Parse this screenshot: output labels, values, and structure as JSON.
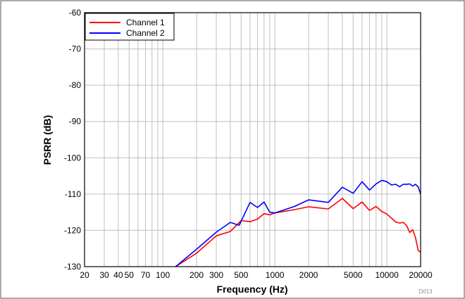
{
  "chart_data": {
    "type": "line",
    "xlabel": "Frequency (Hz)",
    "ylabel": "PSRR (dB)",
    "x_scale": "log",
    "xlim": [
      20,
      20000
    ],
    "ylim": [
      -130,
      -60
    ],
    "grid": true,
    "legend_position": "top-left",
    "x_ticks": [
      20,
      30,
      40,
      50,
      70,
      100,
      200,
      300,
      500,
      1000,
      2000,
      5000,
      10000,
      20000
    ],
    "x_tick_labels": [
      "20",
      "30",
      "40",
      "50",
      "70",
      "100",
      "200",
      "300",
      "500",
      "1000",
      "2000",
      "5000",
      "10000",
      "20000"
    ],
    "y_ticks": [
      -60,
      -70,
      -80,
      -90,
      -100,
      -110,
      -120,
      -130
    ],
    "y_tick_labels": [
      "-60",
      "-70",
      "-80",
      "-90",
      "-100",
      "-110",
      "-120",
      "-130"
    ],
    "figure_code": "D013",
    "series": [
      {
        "name": "Channel 1",
        "color": "#ff0000",
        "x": [
          130,
          200,
          300,
          400,
          500,
          600,
          700,
          800,
          900,
          1000,
          1500,
          2000,
          3000,
          4000,
          5000,
          6000,
          7000,
          8000,
          9000,
          10000,
          12000,
          13000,
          14000,
          15000,
          16000,
          17000,
          18000,
          19000,
          20000
        ],
        "y": [
          -130,
          -126.3,
          -121.5,
          -120.3,
          -117.3,
          -117.6,
          -116.9,
          -115.4,
          -115.7,
          -115.2,
          -114.3,
          -113.5,
          -114.1,
          -111.2,
          -114.0,
          -112.2,
          -114.5,
          -113.4,
          -114.8,
          -115.5,
          -117.7,
          -118.0,
          -117.8,
          -118.7,
          -120.6,
          -119.8,
          -122.0,
          -125.5,
          -126.0
        ]
      },
      {
        "name": "Channel 2",
        "color": "#0000ff",
        "x": [
          130,
          200,
          300,
          400,
          480,
          600,
          700,
          800,
          900,
          1000,
          1500,
          2000,
          3000,
          4000,
          5000,
          6000,
          7000,
          8000,
          9000,
          10000,
          11000,
          12000,
          13000,
          14000,
          15000,
          16000,
          17000,
          18000,
          19000,
          20000
        ],
        "y": [
          -130,
          -125.2,
          -120.5,
          -117.8,
          -118.6,
          -112.3,
          -113.7,
          -112.2,
          -115.0,
          -115.2,
          -113.4,
          -111.6,
          -112.3,
          -108.1,
          -109.8,
          -106.6,
          -108.9,
          -107.2,
          -106.2,
          -106.6,
          -107.5,
          -107.3,
          -108.0,
          -107.3,
          -107.3,
          -107.2,
          -107.8,
          -107.3,
          -108.0,
          -110.0
        ]
      }
    ]
  }
}
